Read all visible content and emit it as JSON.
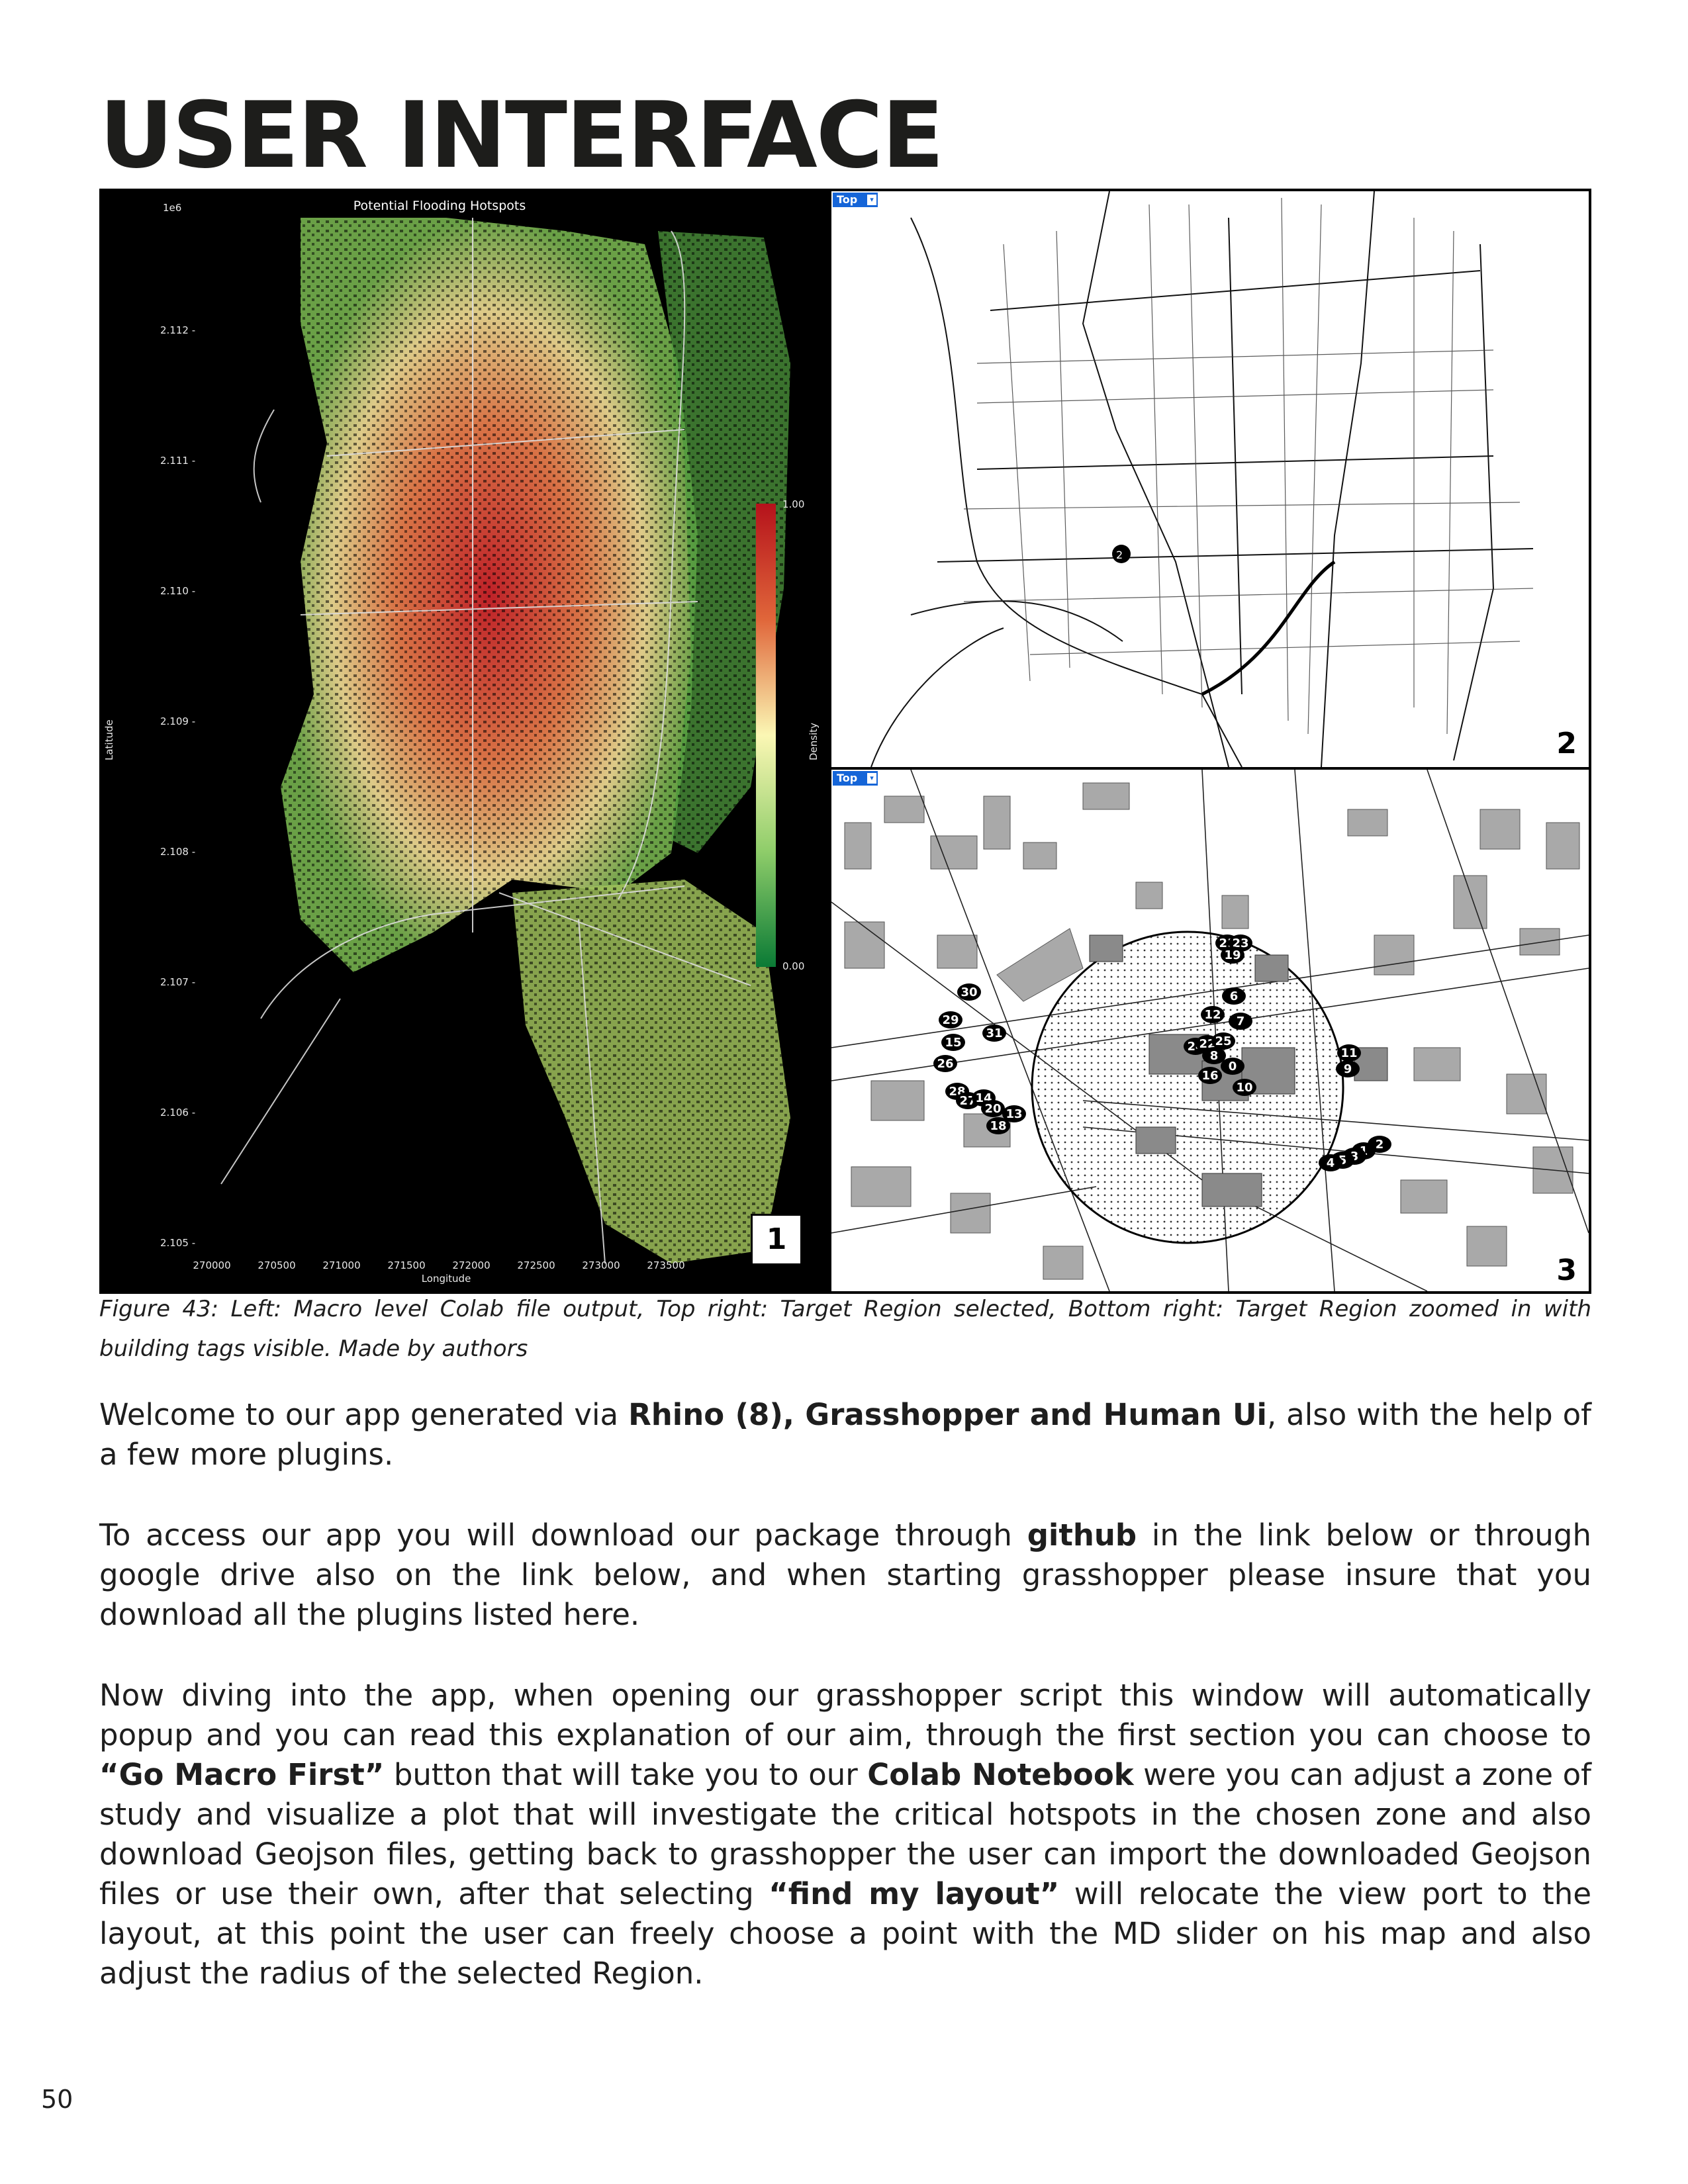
{
  "page": {
    "title": "USER INTERFACE",
    "page_number": "50"
  },
  "figure": {
    "macro_panel": {
      "title": "Potential Flooding Hotspots",
      "exponent": "1e6",
      "xlabel": "Longitude",
      "ylabel": "Latitude",
      "x_ticks": [
        "270000",
        "270500",
        "271000",
        "271500",
        "272000",
        "272500",
        "273000",
        "273500"
      ],
      "y_ticks": [
        "2.112 -",
        "2.111 -",
        "2.110 -",
        "2.109 -",
        "2.108 -",
        "2.107 -",
        "2.106 -",
        "2.105 -"
      ],
      "colorbar_label": "Density",
      "colorbar_max": "1.00",
      "colorbar_min": "0.00",
      "colorbar_colors": {
        "high": "#b5121b",
        "mid": "#fbf7b4",
        "low": "#0a7a35"
      },
      "panel_number": "1"
    },
    "target_panel": {
      "view_tab": "Top",
      "panel_number": "2",
      "marker_label": "2"
    },
    "zoom_panel": {
      "view_tab": "Top",
      "panel_number": "3",
      "building_tags": [
        "21",
        "23",
        "19",
        "30",
        "6",
        "29",
        "12",
        "7",
        "31",
        "15",
        "24",
        "22",
        "25",
        "11",
        "26",
        "8",
        "0",
        "9",
        "16",
        "10",
        "28",
        "27",
        "14",
        "20",
        "13",
        "18",
        "2",
        "1",
        "3",
        "5",
        "4"
      ]
    },
    "caption": "Figure 43: Left: Macro level Colab file output, Top right: Target Region selected, Bottom right: Target Region zoomed in with building tags visible. Made by authors"
  },
  "body": {
    "p1": {
      "a": "Welcome to our app generated via ",
      "b": "Rhino (8), Grasshopper and Human Ui",
      "c": ", also with the help of a few more plugins."
    },
    "p2": {
      "a": "To access our app you will download our package through ",
      "b": "github",
      "c": " in the link below or through google drive also on the link below, and when starting grasshopper please insure that you download all the plugins listed here."
    },
    "p3": {
      "a": "Now diving into the app, when opening our grasshopper script this window will automatically popup and you can read this explanation of our aim, through the first section you can choose to ",
      "b": "“Go Macro First”",
      "c": " button that will take you to our ",
      "d": "Colab Notebook",
      "e": " were you can adjust a zone of study and visualize a plot that will investigate the critical hotspots in the chosen zone and also download Geojson files, getting back to grasshopper the user can import the downloaded Geojson files or use their own, after that selecting ",
      "f": "“find my layout”",
      "g": " will relocate the view port to the layout, at this point the user can freely choose a point with the MD slider on his map and also adjust the radius of the selected Region."
    }
  }
}
